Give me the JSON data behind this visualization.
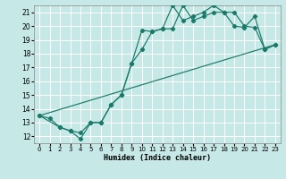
{
  "xlabel": "Humidex (Indice chaleur)",
  "background_color": "#c6e8e6",
  "grid_color": "#ffffff",
  "line_color": "#1a7a6a",
  "xlim": [
    -0.5,
    23.5
  ],
  "ylim": [
    11.5,
    21.5
  ],
  "xticks": [
    0,
    1,
    2,
    3,
    4,
    5,
    6,
    7,
    8,
    9,
    10,
    11,
    12,
    13,
    14,
    15,
    16,
    17,
    18,
    19,
    20,
    21,
    22,
    23
  ],
  "yticks": [
    12,
    13,
    14,
    15,
    16,
    17,
    18,
    19,
    20,
    21
  ],
  "line1_x": [
    0,
    1,
    2,
    3,
    4,
    5,
    6,
    7,
    8,
    9,
    10,
    11,
    12,
    13,
    14,
    15,
    16,
    17,
    18,
    19,
    20,
    21,
    22,
    23
  ],
  "line1_y": [
    13.5,
    13.3,
    12.65,
    12.4,
    11.8,
    13.0,
    13.0,
    14.3,
    15.0,
    17.3,
    19.7,
    19.6,
    19.8,
    21.5,
    20.4,
    20.7,
    21.0,
    21.5,
    21.0,
    20.0,
    19.9,
    20.7,
    18.3,
    18.65
  ],
  "line2_x": [
    0,
    2,
    3,
    4,
    5,
    6,
    7,
    8,
    9,
    10,
    11,
    12,
    13,
    14,
    15,
    16,
    17,
    18,
    19,
    20,
    21,
    22,
    23
  ],
  "line2_y": [
    13.5,
    12.65,
    12.4,
    12.25,
    13.0,
    13.0,
    14.3,
    15.0,
    17.3,
    18.3,
    19.6,
    19.8,
    19.8,
    21.5,
    20.4,
    20.7,
    21.0,
    21.0,
    21.0,
    20.0,
    19.9,
    18.3,
    18.65
  ],
  "line3_x": [
    0,
    23
  ],
  "line3_y": [
    13.5,
    18.65
  ]
}
